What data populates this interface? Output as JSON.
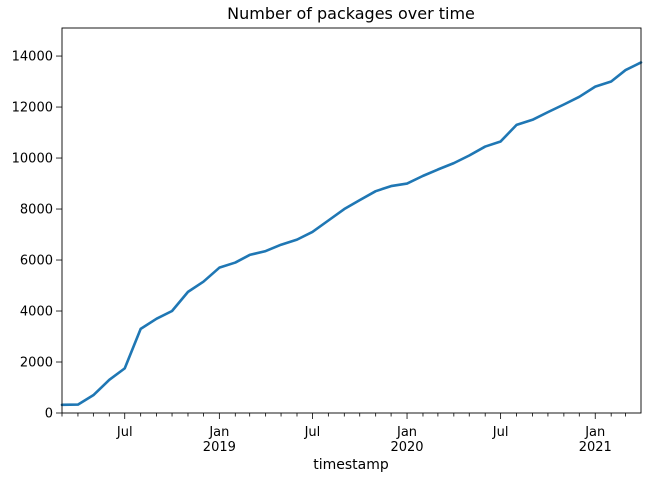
{
  "chart_data": {
    "type": "line",
    "title": "Number of packages over time",
    "xlabel": "timestamp",
    "ylabel": "",
    "x_range": [
      "2018-03-01",
      "2021-03-31"
    ],
    "ylim": [
      0,
      15100
    ],
    "grid": false,
    "legend": "none",
    "yticks": [
      0,
      2000,
      4000,
      6000,
      8000,
      10000,
      12000,
      14000
    ],
    "ytick_labels": [
      "0",
      "2000",
      "4000",
      "6000",
      "8000",
      "10000",
      "12000",
      "14000"
    ],
    "xticks_major": [
      {
        "date": "2018-07-01",
        "label": "Jul",
        "sublabel": ""
      },
      {
        "date": "2019-01-01",
        "label": "Jan",
        "sublabel": "2019"
      },
      {
        "date": "2019-07-01",
        "label": "Jul",
        "sublabel": ""
      },
      {
        "date": "2020-01-01",
        "label": "Jan",
        "sublabel": "2020"
      },
      {
        "date": "2020-07-01",
        "label": "Jul",
        "sublabel": ""
      },
      {
        "date": "2021-01-01",
        "label": "Jan",
        "sublabel": "2021"
      }
    ],
    "series": [
      {
        "color": "#1f77b4",
        "x": [
          "2018-03-01",
          "2018-04-01",
          "2018-05-01",
          "2018-06-01",
          "2018-07-01",
          "2018-08-01",
          "2018-09-01",
          "2018-10-01",
          "2018-11-01",
          "2018-12-01",
          "2019-01-01",
          "2019-02-01",
          "2019-03-01",
          "2019-04-01",
          "2019-05-01",
          "2019-06-01",
          "2019-07-01",
          "2019-08-01",
          "2019-09-01",
          "2019-10-01",
          "2019-11-01",
          "2019-12-01",
          "2020-01-01",
          "2020-02-01",
          "2020-03-01",
          "2020-04-01",
          "2020-05-01",
          "2020-06-01",
          "2020-07-01",
          "2020-08-01",
          "2020-09-01",
          "2020-10-01",
          "2020-11-01",
          "2020-12-01",
          "2021-01-01",
          "2021-02-01",
          "2021-03-01",
          "2021-03-31"
        ],
        "y": [
          320,
          330,
          700,
          1300,
          1750,
          3300,
          3700,
          4000,
          4750,
          5150,
          5700,
          5900,
          6200,
          6350,
          6600,
          6800,
          7100,
          7550,
          8000,
          8350,
          8700,
          8900,
          9000,
          9300,
          9550,
          9800,
          10100,
          10450,
          10650,
          11300,
          11500,
          11800,
          12100,
          12400,
          12800,
          13000,
          13450,
          13750
        ]
      }
    ]
  }
}
